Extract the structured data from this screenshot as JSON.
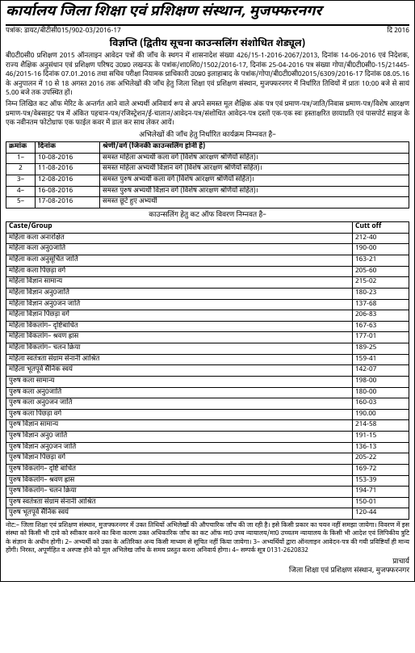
{
  "header": {
    "title": "कार्यालय जिला शिक्षा एवं प्रशिक्षण संस्थान, मुजफ्फरनगर",
    "ref_left": "पत्रांक: डायट/बीटीसी015/902-03/2016-17",
    "ref_right": "दि 2016",
    "notice_title": "विज्ञप्ति (द्वितीय सूचना काउन्सलिंग संशोधित शेड्यूल)"
  },
  "body": {
    "para1": "बी0टी0सी0 प्रशिक्षण 2015 ऑनलाइन आवेदन पत्रों की जाँच के स्थगन में शासनादेश संख्या 426/15-1-2016-2067/2013, दिनांक 14-06-2016 एवं निदेशक, राज्य शैक्षिक अनुसंधान एवं प्रशिक्षण परिषद उ0प्र0 लखनऊ के पत्रांक/शा0शि0/1502/2016-17, दिनांक 25-04-2016 पत्र संख्या गोपा/बी0टी0सी0-15/21445-46/2015-16 दिनांक 07.01.2016 तथा सचिव परीक्षा नियामक प्राधिकारी उ0प्र0 इलाहाबाद के पत्रांक/गोपा/बी0टी0सी02015/6309/2016-17 दिनांक 08.05.16 के अनुपालन में 10 से 18 अगस्त 2016 तक अभिलेखों की जाँच हेतु जिला शिक्षा एवं प्रशिक्षण संस्थान, मुजफ्फरनगर में निर्धारित तिथियों में प्रातः 10:00 बजे से सायं 5.00 बजे तक उपस्थित हों।",
    "para2": "निम्न लिखित कट ऑफ मेरिट के अन्तर्गत आने वाले अभ्यर्थी अनिवार्य रूप से अपने समस्त मूल शैक्षिक अंक पत्र एवं प्रमाण-पत्र/जाति/निवास प्रमाण-पत्र/विशेष आरक्षण प्रमाण-पत्र/वेबसाइट पत्र में अंकित पहचान-पत्र/रजिस्ट्रेशन/ई-चालान/आवेदन-पत्र/संशोधित आवेदन-पत्र दस्तों एक-एक स्वः हस्ताक्षरित छायाप्रति एवं पासपोर्ट साइज के एक नवीनतम फोटोग्राफ एक फाईल कवर में डाल कर साथ लेकर आयें।",
    "sched_heading": "अभिलेखों की जाँच हेतु निर्धारित कार्यक्रम निम्नवत है–"
  },
  "schedule": {
    "headers": [
      "क्रमांक",
      "दिनांक",
      "श्रेणी/वर्ग (जिनकी काउन्सलिंग होनी है)"
    ],
    "rows": [
      [
        "1–",
        "10-08-2016",
        "समस्त महिला अभ्यर्थी कला वर्ग (विशेष आरक्षण श्रेणियों सहित)।"
      ],
      [
        "2",
        "11-08-2016",
        "समस्त महिला अभ्यर्थी विज्ञान वर्ग (विशेष आरक्षण श्रेणियों सहित)।"
      ],
      [
        "3–",
        "12-08-2016",
        "समस्त पुरुष अभ्यर्थी कला वर्ग (विशेष आरक्षण श्रेणियों सहित)।"
      ],
      [
        "4–",
        "16-08-2016",
        "समस्त पुरुष अभ्यर्थी विज्ञान वर्ग (विशेष आरक्षण श्रेणियों सहित)।"
      ],
      [
        "5–",
        "17-08-2016",
        "समस्त छूटे हुए अभ्यर्थी"
      ]
    ]
  },
  "cutoff": {
    "heading": "काउन्सलिंग हेतु कट ऑफ विवरण निम्नवत है–",
    "headers": [
      "Caste/Group",
      "Cutt off"
    ],
    "rows": [
      [
        "महिला कला अनारक्षित",
        "212-40"
      ],
      [
        "महिला कला अनु0जाति",
        "190-00"
      ],
      [
        "महिला कला अनुसूचित जाति",
        "163-21"
      ],
      [
        "महिला कला पिछड़ा वर्ग",
        "205-60"
      ],
      [
        "महिला विज्ञान सामान्य",
        "215-02"
      ],
      [
        "महिला विज्ञान अनु0जाति",
        "180-23"
      ],
      [
        "महिला विज्ञान अनु0जन जाति",
        "137-68"
      ],
      [
        "महिला विज्ञान पिछड़ा वर्ग",
        "206-83"
      ],
      [
        "महिला विकलांग– दृष्टिबाधित",
        "167-63"
      ],
      [
        "महिला विकलांग– श्रवण ह्रास",
        "177-01"
      ],
      [
        "महिला विकलांग– चलन क्रिया",
        "189-25"
      ],
      [
        "महिला स्वतंत्रता संग्राम सेनानी आश्रित",
        "159-41"
      ],
      [
        "महिला भूतपूर्व सैनिक स्वयं",
        "142-07"
      ],
      [
        "पुरुष कला सामान्य",
        "198-00"
      ],
      [
        "पुरुष कला अनु0जाति",
        "180-00"
      ],
      [
        "पुरुष कला अनु0जन जाति",
        "160-03"
      ],
      [
        "पुरुष कला पिछड़ा वर्ग",
        "190.00"
      ],
      [
        "पुरुष विज्ञान सामान्य",
        "214-58"
      ],
      [
        "पुरुष विज्ञान अनु0 जाति",
        "191-15"
      ],
      [
        "पुरुष विज्ञान अनु0जन जाति",
        "136-13"
      ],
      [
        "पुरुष विज्ञान पिछड़ा वर्ग",
        "205-22"
      ],
      [
        "पुरुष विकलांग– दृष्टि बाधित",
        "169-72"
      ],
      [
        "पुरुष विकलांग– श्रवण ह्रास",
        "153-39"
      ],
      [
        "पुरुष विकलांग– चलन क्रिया",
        "194-71"
      ],
      [
        "पुरुष स्वतंत्रता संग्राम सेनानी आश्रित",
        "150-01"
      ],
      [
        "पुरुष भूतपूर्व सैनिक स्वयं",
        "120-44"
      ]
    ]
  },
  "footer": {
    "note": "नोट:– जिला शिक्षा एवं प्रशिक्षण संस्थान, मुजफ्फरनगर में उक्त तिथियों अभिलेखों की औपचारिक जाँच की जा रही है। इसे किसी प्रकार का चयन नहीं समझा जायेगा। विवरण में इस संस्था को किसी भी दावे को स्वीकार करने का बिना कारण उक्त अधिकारिक जाँच का कट ऑफ मा0 उच्च न्यायालय/मा0 उच्चतम न्यायालय के किसी भी आदेश एवं लिपिकीय त्रुटि के संज्ञान के अधीन होगी। 2– अभ्यर्थी को उक्त के अतिरिक्त अन्य किसी माध्यम से सूचित नहीं किया जायेगा। 3– अभ्यर्थियों द्वारा ऑनलाइन आवेदन-पत्र की गयी प्रविष्टियाँ ही मान्य होंगी। निरस्त, अपूर्णहित व अस्पष्ट होने को मूल अभिलेख जाँच के समय प्रस्तुत करना अनिवार्य होगा। 4– सम्पर्क सूत्र 0131-2620832",
    "sign1": "प्राचार्य",
    "sign2": "जिला शिक्षा एवं प्रशिक्षण संस्थान, मुजफ्फरनगर"
  }
}
